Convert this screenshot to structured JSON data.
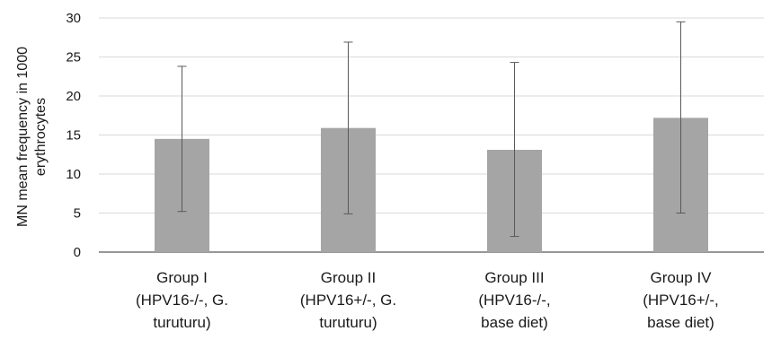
{
  "chart_data": {
    "type": "bar",
    "title": "",
    "xlabel": "",
    "ylabel": "MN mean frequency in 1000 erythrocytes",
    "ylabel_lines": [
      "MN mean frequency in 1000",
      "erythrocytes"
    ],
    "ylim": [
      0,
      30
    ],
    "yticks": [
      0,
      5,
      10,
      15,
      20,
      25,
      30
    ],
    "grid": true,
    "categories": [
      "Group I (HPV16-/-, G. turuturu)",
      "Group II (HPV16+/-, G. turuturu)",
      "Group III (HPV16-/-, base diet)",
      "Group IV (HPV16+/-, base diet)"
    ],
    "category_lines": [
      [
        "Group I",
        "(HPV16-/-, G.",
        "turuturu)"
      ],
      [
        "Group II",
        "(HPV16+/-, G.",
        "turuturu)"
      ],
      [
        "Group III",
        "(HPV16-/-,",
        "base diet)"
      ],
      [
        "Group IV",
        "(HPV16+/-,",
        "base diet)"
      ]
    ],
    "values": [
      14.5,
      15.9,
      13.1,
      17.2
    ],
    "error_low": [
      5.2,
      4.9,
      2.0,
      5.0
    ],
    "error_high": [
      23.8,
      26.9,
      24.3,
      29.5
    ],
    "colors": {
      "bar": "#a5a5a5",
      "grid": "#d9d9d9",
      "axis": "#595959",
      "error": "#595959"
    }
  }
}
